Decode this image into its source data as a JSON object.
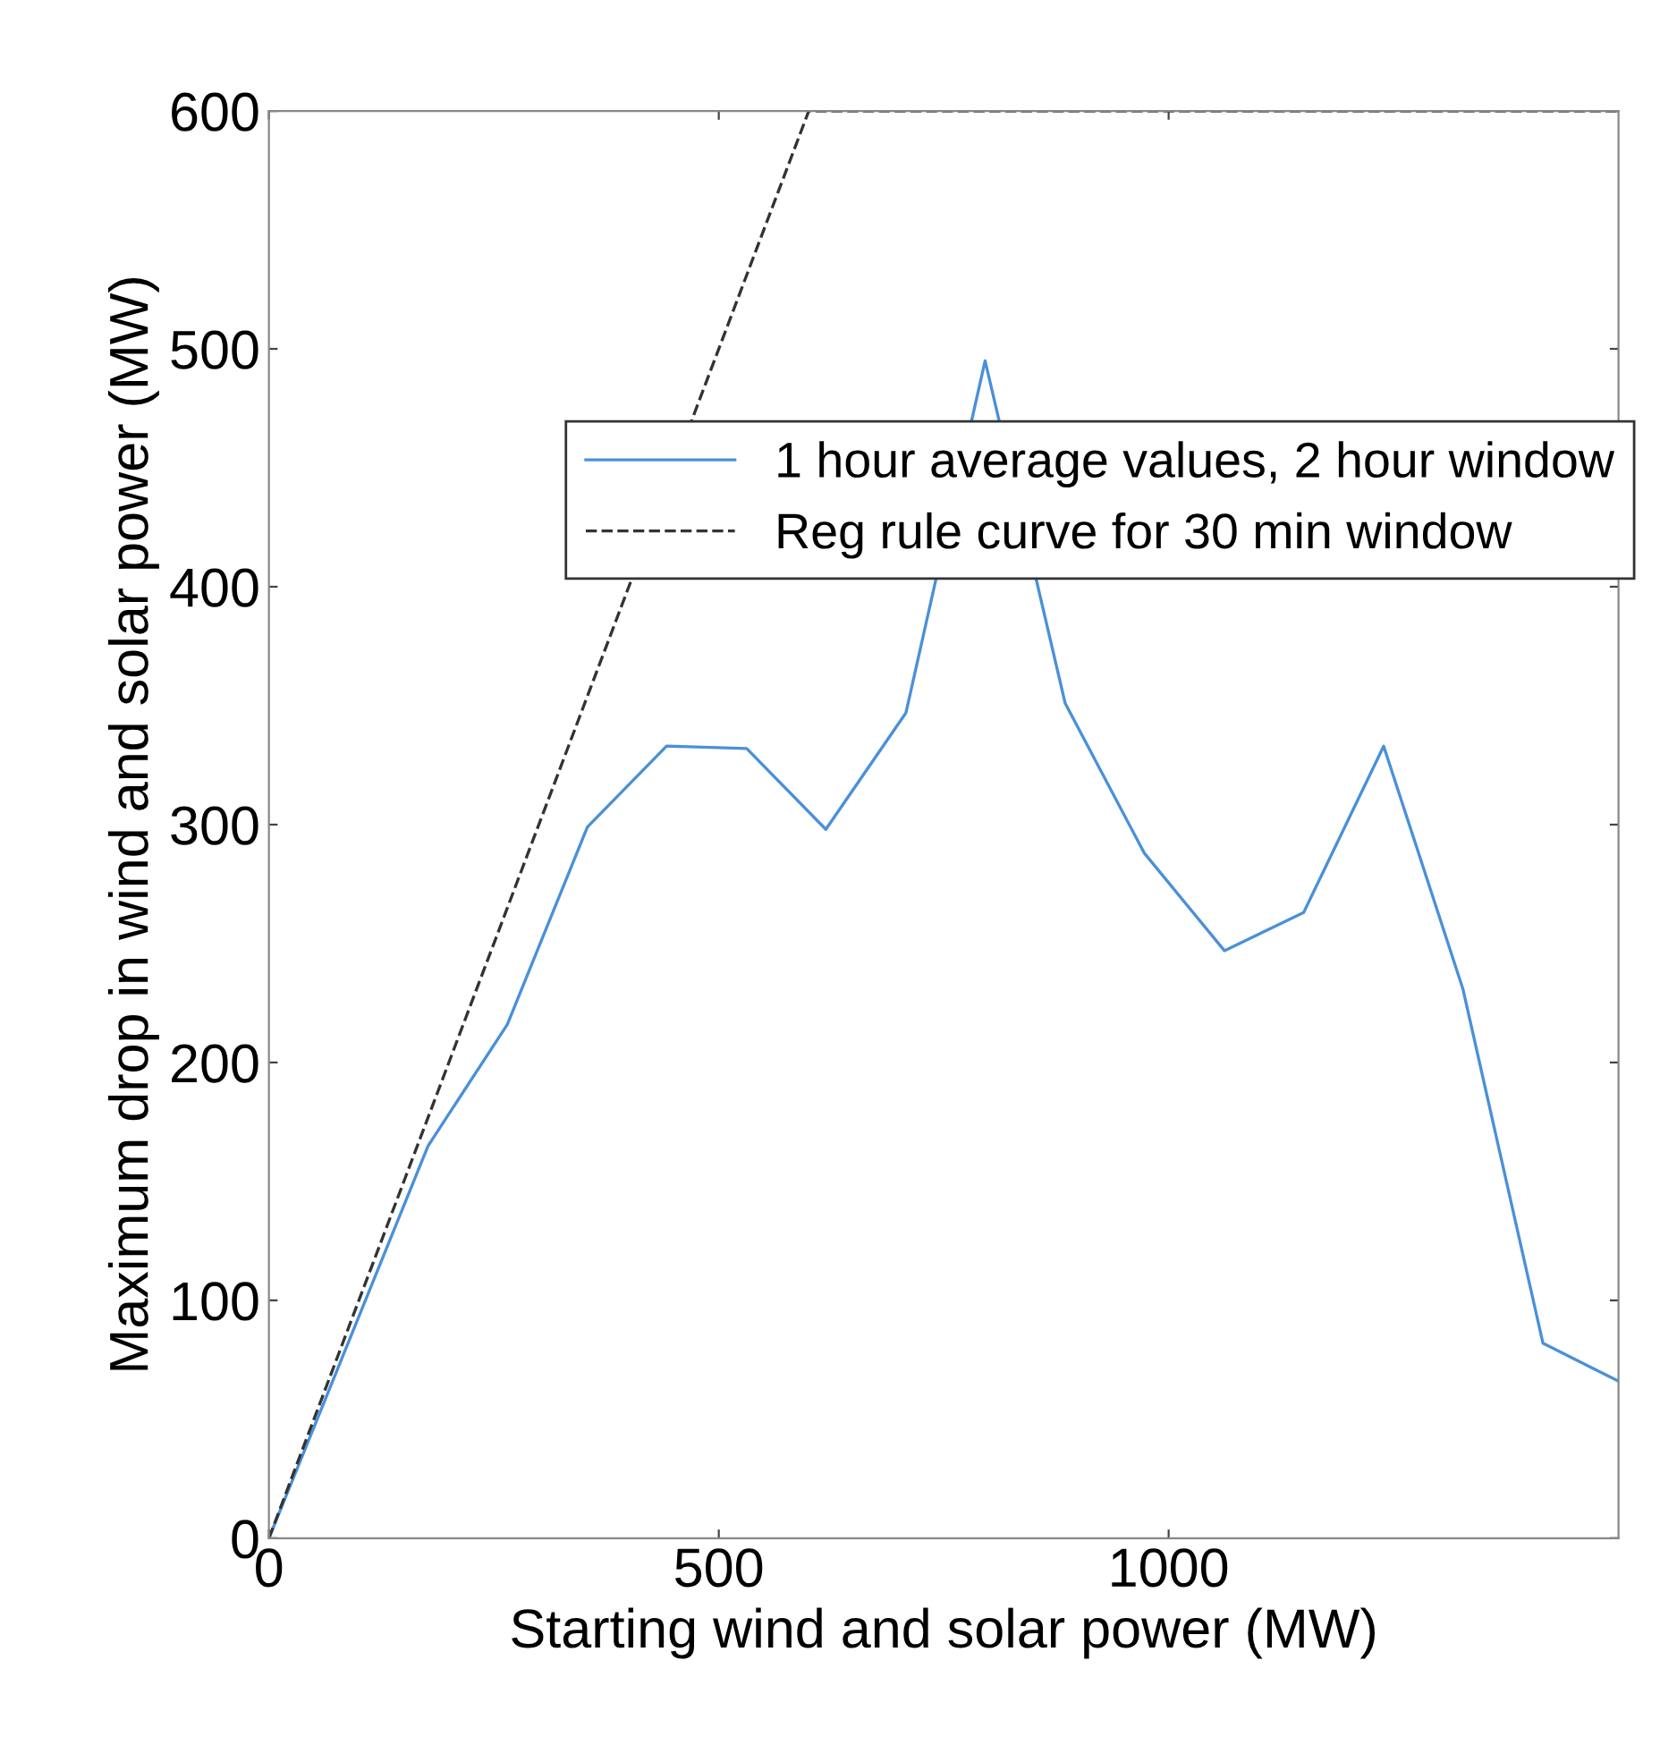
{
  "chart_data": {
    "type": "line",
    "xlabel": "Starting wind and solar power (MW)",
    "ylabel": "Maximum drop in wind and solar power (MW)",
    "xlim": [
      0,
      1500
    ],
    "ylim": [
      0,
      600
    ],
    "xticks": [
      0,
      500,
      1000
    ],
    "yticks": [
      0,
      100,
      200,
      300,
      400,
      500,
      600
    ],
    "grid": false,
    "legend": "top right",
    "series": [
      {
        "name": "1 hour average values, 2 hour window",
        "color": "#4a90d9",
        "line_style": "solid",
        "x": [
          0,
          177,
          265,
          354,
          442,
          531,
          619,
          708,
          796,
          885,
          973,
          1062,
          1150,
          1239,
          1327,
          1416,
          1500
        ],
        "values": [
          0,
          165,
          216,
          299,
          333,
          332,
          298,
          347,
          495,
          351,
          288,
          247,
          263,
          333,
          231,
          82,
          66
        ]
      },
      {
        "name": "Reg rule curve for 30 min window",
        "color": "#333333",
        "line_style": "dashed",
        "x": [
          0,
          600,
          1500
        ],
        "values": [
          0,
          600,
          600
        ]
      }
    ]
  }
}
